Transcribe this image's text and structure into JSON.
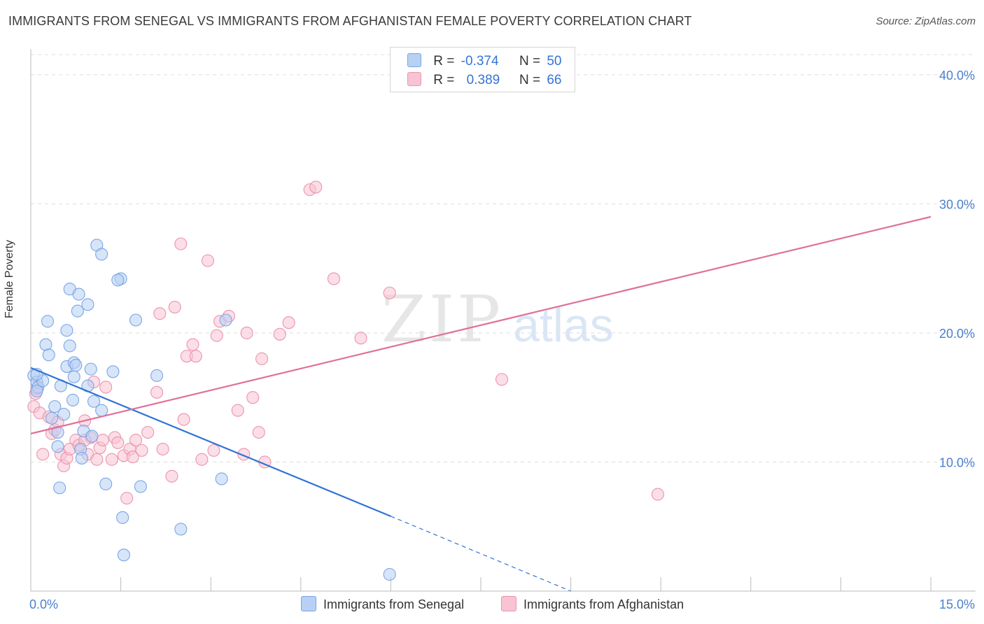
{
  "title": "IMMIGRANTS FROM SENEGAL VS IMMIGRANTS FROM AFGHANISTAN FEMALE POVERTY CORRELATION CHART",
  "source": "Source: ZipAtlas.com",
  "watermark": {
    "zip": "ZIP",
    "atlas": "atlas"
  },
  "legend": {
    "r_label": "R =",
    "n_label": "N =",
    "series": [
      {
        "name": "Immigrants from Senegal",
        "r": "-0.374",
        "n": "50",
        "fill": "#b7d0f4",
        "stroke": "#7aa6e6"
      },
      {
        "name": "Immigrants from Afghanistan",
        "r": "0.389",
        "n": "66",
        "fill": "#f8c3d2",
        "stroke": "#ec94b0"
      }
    ]
  },
  "colors": {
    "blue_line": "#2f73d6",
    "pink_line": "#e0709a",
    "tick_text": "#4a7fd0",
    "grid": "#dddddd"
  },
  "chart_data": {
    "type": "scatter",
    "title": "IMMIGRANTS FROM SENEGAL VS IMMIGRANTS FROM AFGHANISTAN FEMALE POVERTY CORRELATION CHART",
    "xlabel": "",
    "ylabel": "Female Poverty",
    "xlim": [
      0,
      15
    ],
    "ylim": [
      0,
      42
    ],
    "x_tick_labels": [
      "0.0%",
      "15.0%"
    ],
    "y_ticks": [
      10,
      20,
      30,
      40
    ],
    "y_tick_labels": [
      "10.0%",
      "20.0%",
      "30.0%",
      "40.0%"
    ],
    "grid": true,
    "series": [
      {
        "name": "Immigrants from Senegal",
        "points": [
          [
            0.05,
            16.7
          ],
          [
            0.1,
            16.2
          ],
          [
            0.12,
            15.8
          ],
          [
            0.1,
            15.5
          ],
          [
            0.2,
            16.3
          ],
          [
            0.25,
            19.1
          ],
          [
            0.28,
            20.9
          ],
          [
            0.3,
            18.3
          ],
          [
            0.35,
            13.4
          ],
          [
            0.4,
            14.3
          ],
          [
            0.45,
            12.3
          ],
          [
            0.45,
            11.2
          ],
          [
            0.48,
            8.0
          ],
          [
            0.55,
            13.7
          ],
          [
            0.5,
            15.9
          ],
          [
            0.6,
            20.2
          ],
          [
            0.6,
            17.4
          ],
          [
            0.65,
            19.0
          ],
          [
            0.65,
            23.4
          ],
          [
            0.7,
            14.8
          ],
          [
            0.72,
            17.7
          ],
          [
            0.72,
            16.6
          ],
          [
            0.78,
            21.7
          ],
          [
            0.8,
            23.0
          ],
          [
            0.83,
            11.0
          ],
          [
            0.85,
            10.3
          ],
          [
            0.88,
            12.4
          ],
          [
            0.95,
            22.2
          ],
          [
            0.95,
            15.9
          ],
          [
            1.0,
            17.2
          ],
          [
            1.02,
            12.0
          ],
          [
            1.05,
            14.7
          ],
          [
            1.1,
            26.8
          ],
          [
            1.18,
            26.1
          ],
          [
            1.18,
            14.0
          ],
          [
            1.25,
            8.3
          ],
          [
            1.37,
            17.0
          ],
          [
            1.5,
            24.2
          ],
          [
            1.53,
            5.7
          ],
          [
            1.55,
            2.8
          ],
          [
            1.75,
            21.0
          ],
          [
            1.83,
            8.1
          ],
          [
            2.1,
            16.7
          ],
          [
            2.5,
            4.8
          ],
          [
            3.18,
            8.7
          ],
          [
            3.25,
            21.0
          ],
          [
            5.98,
            1.3
          ],
          [
            0.1,
            16.8
          ],
          [
            0.75,
            17.5
          ],
          [
            1.45,
            24.1
          ]
        ]
      },
      {
        "name": "Immigrants from Afghanistan",
        "points": [
          [
            0.05,
            14.3
          ],
          [
            0.08,
            15.3
          ],
          [
            0.1,
            15.7
          ],
          [
            0.15,
            13.8
          ],
          [
            0.2,
            10.6
          ],
          [
            0.3,
            13.5
          ],
          [
            0.35,
            12.2
          ],
          [
            0.4,
            12.5
          ],
          [
            0.45,
            13.1
          ],
          [
            0.5,
            10.6
          ],
          [
            0.55,
            9.7
          ],
          [
            0.6,
            10.3
          ],
          [
            0.65,
            11.0
          ],
          [
            0.75,
            11.7
          ],
          [
            0.8,
            11.3
          ],
          [
            0.9,
            13.2
          ],
          [
            0.95,
            10.6
          ],
          [
            1.0,
            11.9
          ],
          [
            1.05,
            16.2
          ],
          [
            1.1,
            10.2
          ],
          [
            1.15,
            11.1
          ],
          [
            1.2,
            11.7
          ],
          [
            1.25,
            15.8
          ],
          [
            1.35,
            10.2
          ],
          [
            1.4,
            11.9
          ],
          [
            1.45,
            11.5
          ],
          [
            1.55,
            10.5
          ],
          [
            1.6,
            7.2
          ],
          [
            1.65,
            11.0
          ],
          [
            1.7,
            10.4
          ],
          [
            1.75,
            11.7
          ],
          [
            1.85,
            10.9
          ],
          [
            1.95,
            12.3
          ],
          [
            2.1,
            15.4
          ],
          [
            2.15,
            21.5
          ],
          [
            2.2,
            11.0
          ],
          [
            2.35,
            8.9
          ],
          [
            2.4,
            22.0
          ],
          [
            2.5,
            26.9
          ],
          [
            2.55,
            13.3
          ],
          [
            2.6,
            18.2
          ],
          [
            2.7,
            19.1
          ],
          [
            2.75,
            18.2
          ],
          [
            2.85,
            10.2
          ],
          [
            2.95,
            25.6
          ],
          [
            3.05,
            10.9
          ],
          [
            3.1,
            19.8
          ],
          [
            3.15,
            20.9
          ],
          [
            3.3,
            21.3
          ],
          [
            3.45,
            14.0
          ],
          [
            3.55,
            10.6
          ],
          [
            3.6,
            20.0
          ],
          [
            3.7,
            15.0
          ],
          [
            3.8,
            12.3
          ],
          [
            3.85,
            18.0
          ],
          [
            3.9,
            10.0
          ],
          [
            4.15,
            19.9
          ],
          [
            4.3,
            20.8
          ],
          [
            4.65,
            31.1
          ],
          [
            4.75,
            31.3
          ],
          [
            5.05,
            24.2
          ],
          [
            5.5,
            19.6
          ],
          [
            5.98,
            23.1
          ],
          [
            7.85,
            16.4
          ],
          [
            10.45,
            7.5
          ],
          [
            0.9,
            11.7
          ]
        ]
      }
    ],
    "trend_lines": [
      {
        "series": "Immigrants from Senegal",
        "x": [
          0.0,
          6.0
        ],
        "y": [
          17.3,
          5.8
        ],
        "dashed_to": [
          9.0,
          0.0
        ]
      },
      {
        "series": "Immigrants from Afghanistan",
        "x": [
          0.0,
          15.0
        ],
        "y": [
          12.2,
          29.0
        ]
      }
    ]
  }
}
